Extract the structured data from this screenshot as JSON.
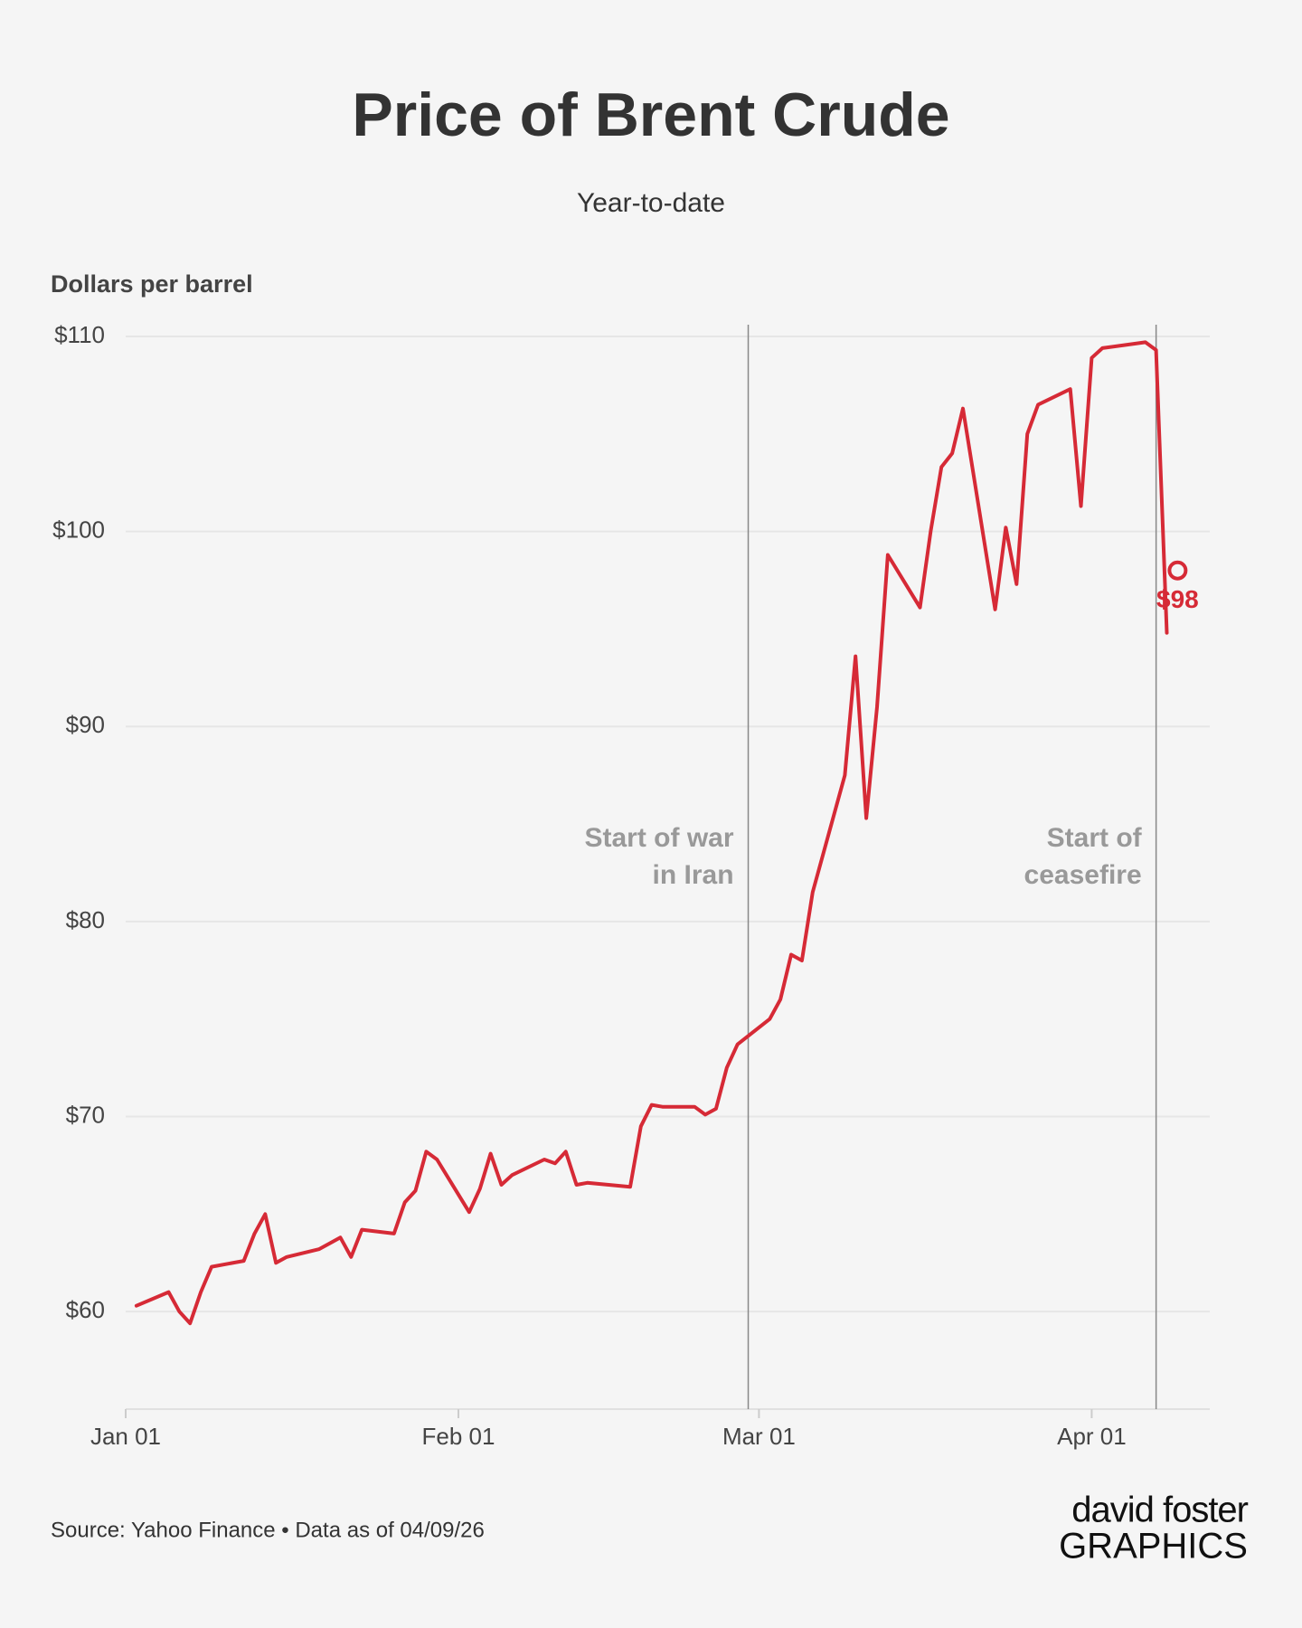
{
  "chart_data": {
    "type": "line",
    "title": "Price of Brent Crude",
    "subtitle": "Year-to-date",
    "y_label": "Dollars per barrel",
    "source": "Source: Yahoo Finance • Data as of 04/09/26",
    "logo": {
      "line1": "david foster",
      "line2": "GRAPHICS"
    },
    "x": [
      "Jan 02",
      "Jan 05",
      "Jan 06",
      "Jan 07",
      "Jan 08",
      "Jan 09",
      "Jan 12",
      "Jan 13",
      "Jan 14",
      "Jan 15",
      "Jan 16",
      "Jan 19",
      "Jan 20",
      "Jan 21",
      "Jan 22",
      "Jan 23",
      "Jan 26",
      "Jan 27",
      "Jan 28",
      "Jan 29",
      "Jan 30",
      "Feb 02",
      "Feb 03",
      "Feb 04",
      "Feb 05",
      "Feb 06",
      "Feb 09",
      "Feb 10",
      "Feb 11",
      "Feb 12",
      "Feb 13",
      "Feb 17",
      "Feb 18",
      "Feb 19",
      "Feb 20",
      "Feb 23",
      "Feb 24",
      "Feb 25",
      "Feb 26",
      "Feb 27",
      "Mar 02",
      "Mar 03",
      "Mar 04",
      "Mar 05",
      "Mar 06",
      "Mar 09",
      "Mar 10",
      "Mar 11",
      "Mar 12",
      "Mar 13",
      "Mar 16",
      "Mar 17",
      "Mar 18",
      "Mar 19",
      "Mar 20",
      "Mar 23",
      "Mar 24",
      "Mar 25",
      "Mar 26",
      "Mar 27",
      "Mar 30",
      "Mar 31",
      "Apr 01",
      "Apr 02",
      "Apr 06",
      "Apr 07",
      "Apr 08"
    ],
    "series": [
      {
        "name": "Brent Crude",
        "color": "#d62a36",
        "values": [
          60.3,
          61.0,
          60.0,
          59.4,
          61.0,
          62.3,
          62.6,
          64.0,
          65.0,
          62.5,
          62.8,
          63.2,
          63.5,
          63.8,
          62.8,
          64.2,
          64.0,
          65.6,
          66.2,
          68.2,
          67.8,
          65.1,
          66.3,
          68.1,
          66.5,
          67.0,
          67.8,
          67.6,
          68.2,
          66.5,
          66.6,
          66.4,
          69.5,
          70.6,
          70.5,
          70.5,
          70.1,
          70.4,
          72.5,
          73.7,
          75.0,
          76.0,
          78.3,
          78.0,
          81.5,
          87.5,
          93.6,
          85.3,
          91.0,
          98.8,
          96.1,
          100.0,
          103.3,
          104.0,
          106.3,
          96.0,
          100.2,
          97.3,
          105.0,
          106.5,
          107.3,
          101.3,
          108.9,
          109.4,
          109.7,
          109.3,
          94.8
        ]
      }
    ],
    "xlim": [
      "Jan 01",
      "Apr 12"
    ],
    "xticks": [
      "Jan 01",
      "Feb 01",
      "Mar 01",
      "Apr 01"
    ],
    "ylim": [
      55,
      110.6
    ],
    "yticks": [
      {
        "value": 60,
        "label": "$60"
      },
      {
        "value": 70,
        "label": "$70"
      },
      {
        "value": 80,
        "label": "$80"
      },
      {
        "value": 90,
        "label": "$90"
      },
      {
        "value": 100,
        "label": "$100"
      },
      {
        "value": 110,
        "label": "$110"
      }
    ],
    "grid": true,
    "events": [
      {
        "x": "Feb 28",
        "text": [
          "Start of war",
          "in Iran"
        ]
      },
      {
        "x": "Apr 07",
        "text": [
          "Start of",
          "ceasefire"
        ]
      }
    ],
    "annotations": [
      {
        "x": "Apr 09",
        "value": 98,
        "label": "$98"
      }
    ]
  }
}
